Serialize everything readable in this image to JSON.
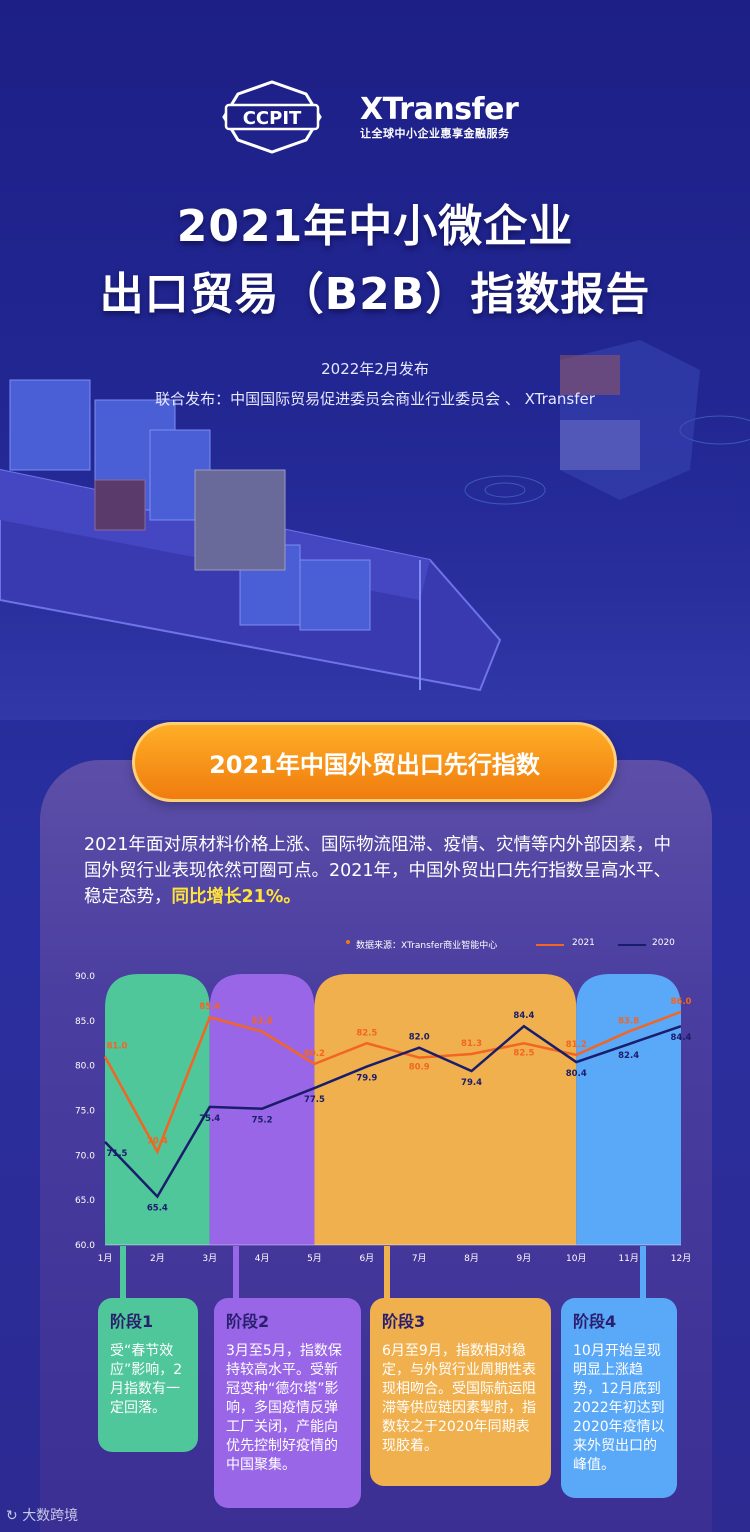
{
  "logos": {
    "ccpit": "CCPIT",
    "xtransfer_name": "XTransfer",
    "xtransfer_slogan": "让全球中小企业惠享金融服务"
  },
  "title_line1": "2021年中小微企业",
  "title_line2": "出口贸易（B2B）指数报告",
  "publish_date": "2022年2月发布",
  "publishers": "联合发布：中国国际贸易促进委员会商业行业委员会 、 XTransfer",
  "section_title": "2021年中国外贸出口先行指数",
  "intro_text": "2021年面对原材料价格上涨、国际物流阻滞、疫情、灾情等内外部因素，中国外贸行业表现依然可圈可点。2021年，中国外贸出口先行指数呈高水平、稳定态势，",
  "intro_highlight": "同比增长21%。",
  "legend": {
    "source": "数据来源：XTransfer商业智能中心",
    "series1": "2021",
    "series2": "2020"
  },
  "colors": {
    "series_2021": "#f26522",
    "series_2020": "#1a1d6b",
    "phase1": "#4fc79a",
    "phase2": "#9a66e8",
    "phase3": "#f0b04e",
    "phase4": "#5aa8f8"
  },
  "chart_data": {
    "type": "line",
    "title": "",
    "x": [
      "1月",
      "2月",
      "3月",
      "4月",
      "5月",
      "6月",
      "7月",
      "8月",
      "9月",
      "10月",
      "11月",
      "12月"
    ],
    "ylim": [
      60,
      90
    ],
    "yticks": [
      "60.0",
      "65.0",
      "70.0",
      "75.0",
      "80.0",
      "85.0",
      "90.0"
    ],
    "series": [
      {
        "name": "2021",
        "values": [
          81.0,
          70.4,
          85.4,
          83.8,
          80.2,
          82.5,
          80.9,
          81.3,
          82.5,
          81.2,
          83.8,
          86.0
        ]
      },
      {
        "name": "2020",
        "values": [
          71.5,
          65.4,
          75.4,
          75.2,
          77.5,
          79.9,
          82.0,
          79.4,
          84.4,
          80.4,
          82.4,
          84.4
        ]
      }
    ],
    "phases": [
      {
        "label": "阶段1",
        "start": "1月",
        "end": "3月"
      },
      {
        "label": "阶段2",
        "start": "3月",
        "end": "5月"
      },
      {
        "label": "阶段3",
        "start": "5月",
        "end": "10月"
      },
      {
        "label": "阶段4",
        "start": "10月",
        "end": "12月"
      }
    ]
  },
  "phase_cards": [
    {
      "title": "阶段1",
      "text": "受“春节效应”影响，2月指数有一定回落。"
    },
    {
      "title": "阶段2",
      "text": "3月至5月，指数保持较高水平。受新冠变种“德尔塔”影响，多国疫情反弹工厂关闭，产能向优先控制好疫情的中国聚集。"
    },
    {
      "title": "阶段3",
      "text": "6月至9月，指数相对稳定，与外贸行业周期性表现相吻合。受国际航运阻滞等供应链因素掣肘，指数较之于2020年同期表现胶着。"
    },
    {
      "title": "阶段4",
      "text": "10月开始呈现明显上涨趋势，12月底到2022年初达到2020年疫情以来外贸出口的峰值。"
    }
  ],
  "watermark": "大数跨境"
}
